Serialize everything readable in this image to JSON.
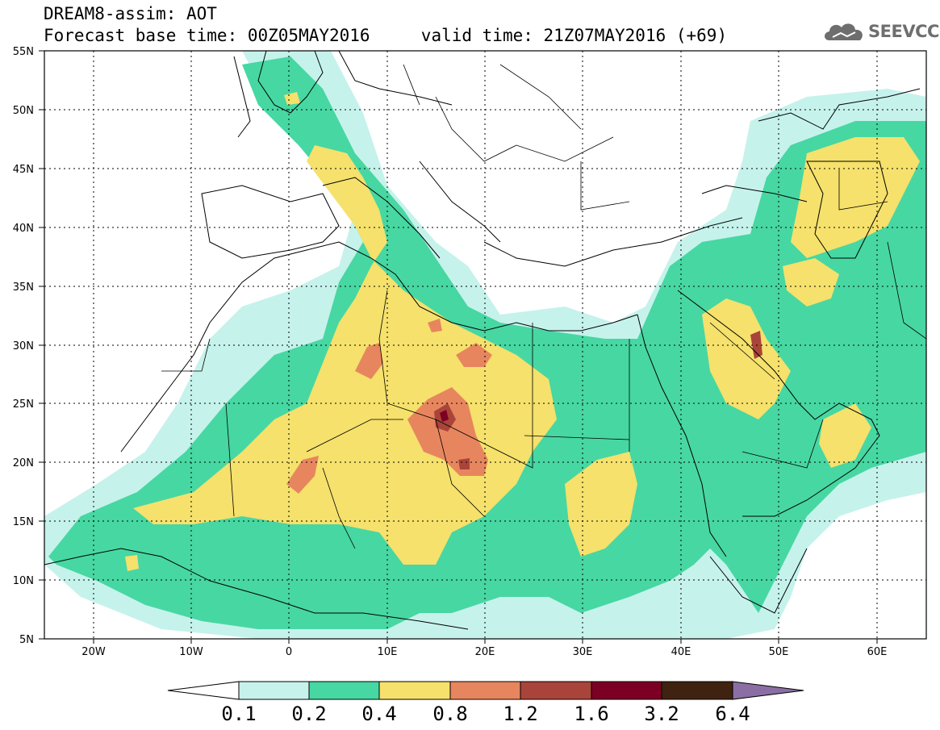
{
  "header": {
    "title_line1": "DREAM8-assim: AOT",
    "base_time_label": "Forecast base time: 00Z05MAY2016",
    "valid_time_label": "valid time: 21Z07MAY2016 (+69)"
  },
  "logo": {
    "text": "SEEVCCC",
    "icon": "cloud-icon"
  },
  "map": {
    "lat_labels": [
      "55N",
      "50N",
      "45N",
      "40N",
      "35N",
      "30N",
      "25N",
      "20N",
      "15N",
      "10N",
      "5N"
    ],
    "lon_labels": [
      "20W",
      "10W",
      "0",
      "10E",
      "20E",
      "30E",
      "40E",
      "50E",
      "60E"
    ],
    "background": "#ffffff",
    "grid": true
  },
  "legend": {
    "labels": [
      "0.1",
      "0.2",
      "0.4",
      "0.8",
      "1.2",
      "1.6",
      "3.2",
      "6.4"
    ],
    "colors": [
      "#ffffff",
      "#c6f2ec",
      "#47d7a2",
      "#f5e16c",
      "#e7865e",
      "#a9443a",
      "#7c0023",
      "#3f2210",
      "#8b6fa4"
    ]
  }
}
